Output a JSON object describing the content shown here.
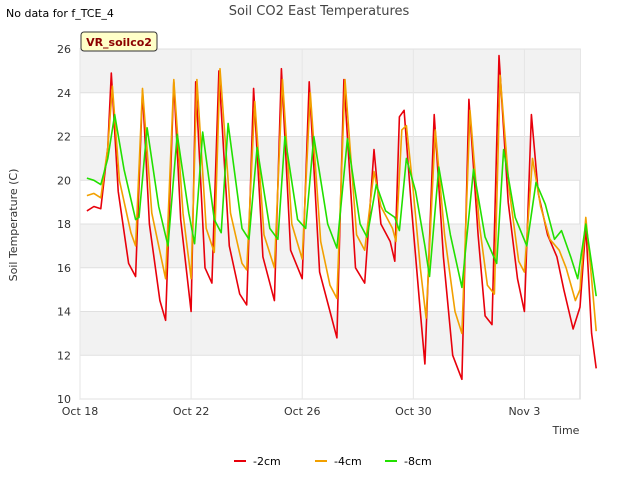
{
  "notice": "No data for f_TCE_4",
  "badge": "VR_soilco2",
  "chart_data": {
    "type": "line",
    "title": "Soil CO2 East Temperatures",
    "xlabel": "Time",
    "ylabel": "Soil Temperature (C)",
    "ylim": [
      10,
      26
    ],
    "yticks": [
      10,
      12,
      14,
      16,
      18,
      20,
      22,
      24,
      26
    ],
    "xlim": [
      "2024-10-18",
      "2024-11-05"
    ],
    "xticks": [
      {
        "date": "2024-10-18",
        "label": "Oct 18"
      },
      {
        "date": "2024-10-22",
        "label": "Oct 22"
      },
      {
        "date": "2024-10-26",
        "label": "Oct 26"
      },
      {
        "date": "2024-10-30",
        "label": "Oct 30"
      },
      {
        "date": "2024-11-03",
        "label": "Nov 3"
      }
    ],
    "legend_position": "bottom",
    "background_bands": true,
    "series": [
      {
        "name": "-2cm",
        "color": "#e8000b",
        "points": [
          [
            "2024-10-18 06:00",
            18.6
          ],
          [
            "2024-10-18 12:00",
            18.8
          ],
          [
            "2024-10-18 18:00",
            18.7
          ],
          [
            "2024-10-19 00:00",
            21.5
          ],
          [
            "2024-10-19 03:00",
            24.9
          ],
          [
            "2024-10-19 09:00",
            19.5
          ],
          [
            "2024-10-19 18:00",
            16.2
          ],
          [
            "2024-10-20 00:00",
            15.6
          ],
          [
            "2024-10-20 06:00",
            24.1
          ],
          [
            "2024-10-20 12:00",
            18.0
          ],
          [
            "2024-10-20 21:00",
            14.5
          ],
          [
            "2024-10-21 02:00",
            13.6
          ],
          [
            "2024-10-21 09:00",
            24.5
          ],
          [
            "2024-10-21 15:00",
            18.2
          ],
          [
            "2024-10-22 00:00",
            14.0
          ],
          [
            "2024-10-22 04:00",
            24.5
          ],
          [
            "2024-10-22 12:00",
            16.0
          ],
          [
            "2024-10-22 18:00",
            15.3
          ],
          [
            "2024-10-23 00:00",
            25.0
          ],
          [
            "2024-10-23 09:00",
            17.0
          ],
          [
            "2024-10-23 18:00",
            14.8
          ],
          [
            "2024-10-24 00:00",
            14.3
          ],
          [
            "2024-10-24 06:00",
            24.2
          ],
          [
            "2024-10-24 14:00",
            16.5
          ],
          [
            "2024-10-25 00:00",
            14.5
          ],
          [
            "2024-10-25 06:00",
            25.1
          ],
          [
            "2024-10-25 14:00",
            16.8
          ],
          [
            "2024-10-26 00:00",
            15.5
          ],
          [
            "2024-10-26 06:00",
            24.5
          ],
          [
            "2024-10-26 15:00",
            15.8
          ],
          [
            "2024-10-27 00:00",
            14.0
          ],
          [
            "2024-10-27 06:00",
            12.8
          ],
          [
            "2024-10-27 12:00",
            24.6
          ],
          [
            "2024-10-27 22:00",
            16.0
          ],
          [
            "2024-10-28 06:00",
            15.3
          ],
          [
            "2024-10-28 14:00",
            21.4
          ],
          [
            "2024-10-28 20:00",
            18.0
          ],
          [
            "2024-10-29 04:00",
            17.2
          ],
          [
            "2024-10-29 08:00",
            16.3
          ],
          [
            "2024-10-29 12:00",
            22.9
          ],
          [
            "2024-10-29 16:00",
            23.2
          ],
          [
            "2024-10-29 22:00",
            19.0
          ],
          [
            "2024-10-30 06:00",
            14.0
          ],
          [
            "2024-10-30 10:00",
            11.6
          ],
          [
            "2024-10-30 18:00",
            23.0
          ],
          [
            "2024-10-31 02:00",
            16.5
          ],
          [
            "2024-10-31 10:00",
            12.0
          ],
          [
            "2024-10-31 18:00",
            10.9
          ],
          [
            "2024-11-01 00:00",
            23.7
          ],
          [
            "2024-11-01 08:00",
            17.5
          ],
          [
            "2024-11-01 14:00",
            13.8
          ],
          [
            "2024-11-01 20:00",
            13.4
          ],
          [
            "2024-11-02 02:00",
            25.7
          ],
          [
            "2024-11-02 10:00",
            19.0
          ],
          [
            "2024-11-02 18:00",
            15.5
          ],
          [
            "2024-11-03 00:00",
            14.0
          ],
          [
            "2024-11-03 06:00",
            23.0
          ],
          [
            "2024-11-03 12:00",
            19.4
          ],
          [
            "2024-11-03 20:00",
            17.5
          ],
          [
            "2024-11-04 04:00",
            16.5
          ],
          [
            "2024-11-04 10:00",
            15.0
          ],
          [
            "2024-11-04 18:00",
            13.2
          ],
          [
            "2024-11-05 00:00",
            14.2
          ],
          [
            "2024-11-05 05:00",
            17.9
          ],
          [
            "2024-11-05 10:00",
            13.0
          ],
          [
            "2024-11-05 14:00",
            11.4
          ]
        ]
      },
      {
        "name": "-4cm",
        "color": "#f2a000",
        "points": [
          [
            "2024-10-18 06:00",
            19.3
          ],
          [
            "2024-10-18 12:00",
            19.4
          ],
          [
            "2024-10-18 18:00",
            19.2
          ],
          [
            "2024-10-19 00:00",
            21.5
          ],
          [
            "2024-10-19 04:00",
            24.3
          ],
          [
            "2024-10-19 10:00",
            20.0
          ],
          [
            "2024-10-19 20:00",
            17.6
          ],
          [
            "2024-10-20 00:00",
            17.0
          ],
          [
            "2024-10-20 06:00",
            24.2
          ],
          [
            "2024-10-20 14:00",
            18.5
          ],
          [
            "2024-10-21 00:00",
            16.0
          ],
          [
            "2024-10-21 02:00",
            15.5
          ],
          [
            "2024-10-21 09:00",
            24.6
          ],
          [
            "2024-10-21 17:00",
            18.5
          ],
          [
            "2024-10-22 00:00",
            15.5
          ],
          [
            "2024-10-22 05:00",
            24.6
          ],
          [
            "2024-10-22 13:00",
            17.8
          ],
          [
            "2024-10-22 20:00",
            16.7
          ],
          [
            "2024-10-23 01:00",
            25.1
          ],
          [
            "2024-10-23 10:00",
            18.5
          ],
          [
            "2024-10-23 20:00",
            16.2
          ],
          [
            "2024-10-24 00:00",
            15.9
          ],
          [
            "2024-10-24 07:00",
            23.6
          ],
          [
            "2024-10-24 15:00",
            17.5
          ],
          [
            "2024-10-25 00:00",
            16.0
          ],
          [
            "2024-10-25 07:00",
            24.6
          ],
          [
            "2024-10-25 15:00",
            18.0
          ],
          [
            "2024-10-26 00:00",
            16.4
          ],
          [
            "2024-10-26 07:00",
            24.0
          ],
          [
            "2024-10-26 16:00",
            17.2
          ],
          [
            "2024-10-27 00:00",
            15.2
          ],
          [
            "2024-10-27 06:00",
            14.6
          ],
          [
            "2024-10-27 13:00",
            24.6
          ],
          [
            "2024-10-27 23:00",
            17.5
          ],
          [
            "2024-10-28 06:00",
            16.8
          ],
          [
            "2024-10-28 14:00",
            20.4
          ],
          [
            "2024-10-28 20:00",
            18.8
          ],
          [
            "2024-10-29 06:00",
            17.8
          ],
          [
            "2024-10-29 09:00",
            17.2
          ],
          [
            "2024-10-29 14:00",
            22.3
          ],
          [
            "2024-10-29 18:00",
            22.5
          ],
          [
            "2024-10-30 00:00",
            19.5
          ],
          [
            "2024-10-30 06:00",
            16.0
          ],
          [
            "2024-10-30 11:00",
            13.7
          ],
          [
            "2024-10-30 19:00",
            22.3
          ],
          [
            "2024-10-31 03:00",
            17.5
          ],
          [
            "2024-10-31 12:00",
            14.0
          ],
          [
            "2024-10-31 18:00",
            13.0
          ],
          [
            "2024-11-01 01:00",
            23.2
          ],
          [
            "2024-11-01 09:00",
            18.0
          ],
          [
            "2024-11-01 16:00",
            15.2
          ],
          [
            "2024-11-01 22:00",
            14.8
          ],
          [
            "2024-11-02 03:00",
            24.8
          ],
          [
            "2024-11-02 11:00",
            19.5
          ],
          [
            "2024-11-02 19:00",
            16.3
          ],
          [
            "2024-11-03 00:00",
            15.8
          ],
          [
            "2024-11-03 07:00",
            21.0
          ],
          [
            "2024-11-03 14:00",
            18.8
          ],
          [
            "2024-11-03 22:00",
            17.3
          ],
          [
            "2024-11-04 06:00",
            16.8
          ],
          [
            "2024-11-04 12:00",
            16.0
          ],
          [
            "2024-11-04 20:00",
            14.5
          ],
          [
            "2024-11-05 00:00",
            15.0
          ],
          [
            "2024-11-05 05:00",
            18.3
          ],
          [
            "2024-11-05 10:00",
            15.5
          ],
          [
            "2024-11-05 14:00",
            13.1
          ]
        ]
      },
      {
        "name": "-8cm",
        "color": "#22e000",
        "points": [
          [
            "2024-10-18 06:00",
            20.1
          ],
          [
            "2024-10-18 12:00",
            20.0
          ],
          [
            "2024-10-18 18:00",
            19.8
          ],
          [
            "2024-10-19 00:00",
            21.0
          ],
          [
            "2024-10-19 06:00",
            23.0
          ],
          [
            "2024-10-19 14:00",
            20.5
          ],
          [
            "2024-10-20 00:00",
            18.2
          ],
          [
            "2024-10-20 03:00",
            18.3
          ],
          [
            "2024-10-20 10:00",
            22.4
          ],
          [
            "2024-10-20 20:00",
            18.8
          ],
          [
            "2024-10-21 04:00",
            17.0
          ],
          [
            "2024-10-21 12:00",
            22.1
          ],
          [
            "2024-10-21 22:00",
            18.5
          ],
          [
            "2024-10-22 03:00",
            17.1
          ],
          [
            "2024-10-22 10:00",
            22.2
          ],
          [
            "2024-10-22 20:00",
            18.2
          ],
          [
            "2024-10-23 02:00",
            17.6
          ],
          [
            "2024-10-23 08:00",
            22.6
          ],
          [
            "2024-10-23 20:00",
            17.8
          ],
          [
            "2024-10-24 02:00",
            17.3
          ],
          [
            "2024-10-24 09:00",
            21.5
          ],
          [
            "2024-10-24 20:00",
            17.8
          ],
          [
            "2024-10-25 03:00",
            17.3
          ],
          [
            "2024-10-25 09:00",
            22.0
          ],
          [
            "2024-10-25 20:00",
            18.2
          ],
          [
            "2024-10-26 03:00",
            17.8
          ],
          [
            "2024-10-26 10:00",
            22.0
          ],
          [
            "2024-10-26 22:00",
            18.0
          ],
          [
            "2024-10-27 06:00",
            16.9
          ],
          [
            "2024-10-27 15:00",
            21.9
          ],
          [
            "2024-10-28 02:00",
            18.0
          ],
          [
            "2024-10-28 08:00",
            17.4
          ],
          [
            "2024-10-28 16:00",
            19.8
          ],
          [
            "2024-10-29 00:00",
            18.6
          ],
          [
            "2024-10-29 08:00",
            18.3
          ],
          [
            "2024-10-29 12:00",
            17.7
          ],
          [
            "2024-10-29 18:00",
            21.0
          ],
          [
            "2024-10-30 02:00",
            19.5
          ],
          [
            "2024-10-30 10:00",
            17.0
          ],
          [
            "2024-10-30 14:00",
            15.6
          ],
          [
            "2024-10-30 22:00",
            20.6
          ],
          [
            "2024-10-31 08:00",
            17.5
          ],
          [
            "2024-10-31 18:00",
            15.1
          ],
          [
            "2024-11-01 04:00",
            20.5
          ],
          [
            "2024-11-01 14:00",
            17.4
          ],
          [
            "2024-11-02 00:00",
            16.2
          ],
          [
            "2024-11-02 06:00",
            21.4
          ],
          [
            "2024-11-02 16:00",
            18.3
          ],
          [
            "2024-11-03 02:00",
            17.0
          ],
          [
            "2024-11-03 10:00",
            19.9
          ],
          [
            "2024-11-03 18:00",
            18.9
          ],
          [
            "2024-11-04 02:00",
            17.3
          ],
          [
            "2024-11-04 08:00",
            17.7
          ],
          [
            "2024-11-04 16:00",
            16.5
          ],
          [
            "2024-11-04 22:00",
            15.5
          ],
          [
            "2024-11-05 05:00",
            18.0
          ],
          [
            "2024-11-05 10:00",
            16.2
          ],
          [
            "2024-11-05 14:00",
            14.7
          ]
        ]
      }
    ]
  }
}
